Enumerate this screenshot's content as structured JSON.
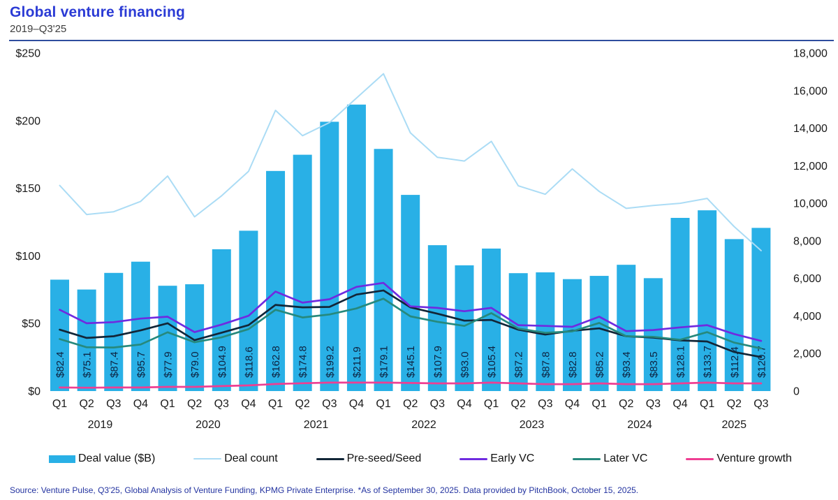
{
  "header": {
    "title": "Global venture financing",
    "subtitle": "2019–Q3'25"
  },
  "source": {
    "text": "Source: Venture Pulse, Q3'25, Global Analysis of Venture Funding, KPMG Private Enterprise. *As of September 30, 2025. Data provided by PitchBook, October 15, 2025."
  },
  "colors": {
    "title_blue": "#2b3bd5",
    "rule_blue": "#2e4d9e",
    "bar_cyan": "#29b0e6",
    "deal_count_line": "#abdcf5",
    "preseed_line": "#122638",
    "early_vc_line": "#6f2be0",
    "later_vc_line": "#26897d",
    "venture_growth_line": "#ef3e92",
    "axis_text": "#1a1a1a",
    "bar_label_text": "#0d2240",
    "source_text": "#2333a0"
  },
  "legend": [
    {
      "label": "Deal value ($B)",
      "swatch": "bar",
      "color": "#29b0e6"
    },
    {
      "label": "Deal count",
      "swatch": "thinline",
      "color": "#abdcf5"
    },
    {
      "label": "Pre-seed/Seed",
      "swatch": "line",
      "color": "#122638"
    },
    {
      "label": "Early VC",
      "swatch": "line",
      "color": "#6f2be0"
    },
    {
      "label": "Later VC",
      "swatch": "line",
      "color": "#26897d"
    },
    {
      "label": "Venture growth",
      "swatch": "line",
      "color": "#ef3e92"
    }
  ],
  "chart_data": {
    "type": "bar+line combo",
    "title": "Global venture financing",
    "subtitle": "2019–Q3'25",
    "quarters": [
      "Q1",
      "Q2",
      "Q3",
      "Q4",
      "Q1",
      "Q2",
      "Q3",
      "Q4",
      "Q1",
      "Q2",
      "Q3",
      "Q4",
      "Q1",
      "Q2",
      "Q3",
      "Q4",
      "Q1",
      "Q2",
      "Q3",
      "Q4",
      "Q1",
      "Q2",
      "Q3",
      "Q4",
      "Q1",
      "Q2",
      "Q3"
    ],
    "years": [
      {
        "label": "2019",
        "quarters": 4
      },
      {
        "label": "2020",
        "quarters": 4
      },
      {
        "label": "2021",
        "quarters": 4
      },
      {
        "label": "2022",
        "quarters": 4
      },
      {
        "label": "2023",
        "quarters": 4
      },
      {
        "label": "2024",
        "quarters": 4
      },
      {
        "label": "2025",
        "quarters": 3
      }
    ],
    "left_axis": {
      "min": 0,
      "max": 250,
      "step": 50,
      "ticks": [
        "$0",
        "$50",
        "$100",
        "$150",
        "$200",
        "$250"
      ],
      "grid": false
    },
    "right_axis": {
      "min": 0,
      "max": 18000,
      "step": 2000,
      "ticks": [
        "0",
        "2,000",
        "4,000",
        "6,000",
        "8,000",
        "10,000",
        "12,000",
        "14,000",
        "16,000",
        "18,000"
      ],
      "grid": false
    },
    "bar_series": {
      "name": "Deal value ($B)",
      "axis": "left",
      "label_prefix": "$",
      "values": [
        82.4,
        75.1,
        87.4,
        95.7,
        77.9,
        79.0,
        104.9,
        118.6,
        162.8,
        174.8,
        199.2,
        211.9,
        179.1,
        145.1,
        107.9,
        93.0,
        105.4,
        87.2,
        87.8,
        82.8,
        85.2,
        93.4,
        83.5,
        128.1,
        133.7,
        112.4,
        120.7
      ]
    },
    "line_series": [
      {
        "name": "Deal count",
        "axis": "right",
        "width": 2,
        "values": [
          10950,
          9400,
          9550,
          10100,
          11450,
          9280,
          10400,
          11700,
          14950,
          13600,
          14300,
          15600,
          16900,
          13750,
          12450,
          12250,
          13300,
          10930,
          10480,
          11830,
          10630,
          9730,
          9880,
          10000,
          10260,
          8760,
          7480
        ]
      },
      {
        "name": "Pre-seed/Seed",
        "axis": "right",
        "width": 2.7,
        "values": [
          3270,
          2830,
          2920,
          3230,
          3610,
          2710,
          3110,
          3510,
          4590,
          4460,
          4480,
          5140,
          5360,
          4460,
          4120,
          3750,
          3790,
          3270,
          3010,
          3210,
          3340,
          2920,
          2850,
          2700,
          2640,
          2080,
          1810
        ]
      },
      {
        "name": "Early VC",
        "axis": "right",
        "width": 2.7,
        "values": [
          4330,
          3610,
          3670,
          3860,
          3960,
          3140,
          3540,
          4010,
          5300,
          4710,
          4890,
          5550,
          5760,
          4510,
          4430,
          4250,
          4430,
          3510,
          3470,
          3420,
          3960,
          3190,
          3250,
          3390,
          3510,
          3040,
          2670
        ]
      },
      {
        "name": "Later VC",
        "axis": "right",
        "width": 2.7,
        "values": [
          2770,
          2330,
          2320,
          2480,
          3130,
          2600,
          2860,
          3300,
          4330,
          3920,
          4080,
          4400,
          4920,
          3980,
          3690,
          3470,
          4150,
          3330,
          3100,
          3180,
          3630,
          2920,
          2890,
          2730,
          3140,
          2580,
          2270
        ]
      },
      {
        "name": "Venture growth",
        "axis": "right",
        "width": 2.7,
        "values": [
          190,
          180,
          190,
          190,
          225,
          225,
          265,
          300,
          375,
          415,
          450,
          450,
          450,
          430,
          410,
          410,
          450,
          410,
          370,
          370,
          410,
          370,
          370,
          410,
          450,
          410,
          410
        ]
      }
    ]
  }
}
